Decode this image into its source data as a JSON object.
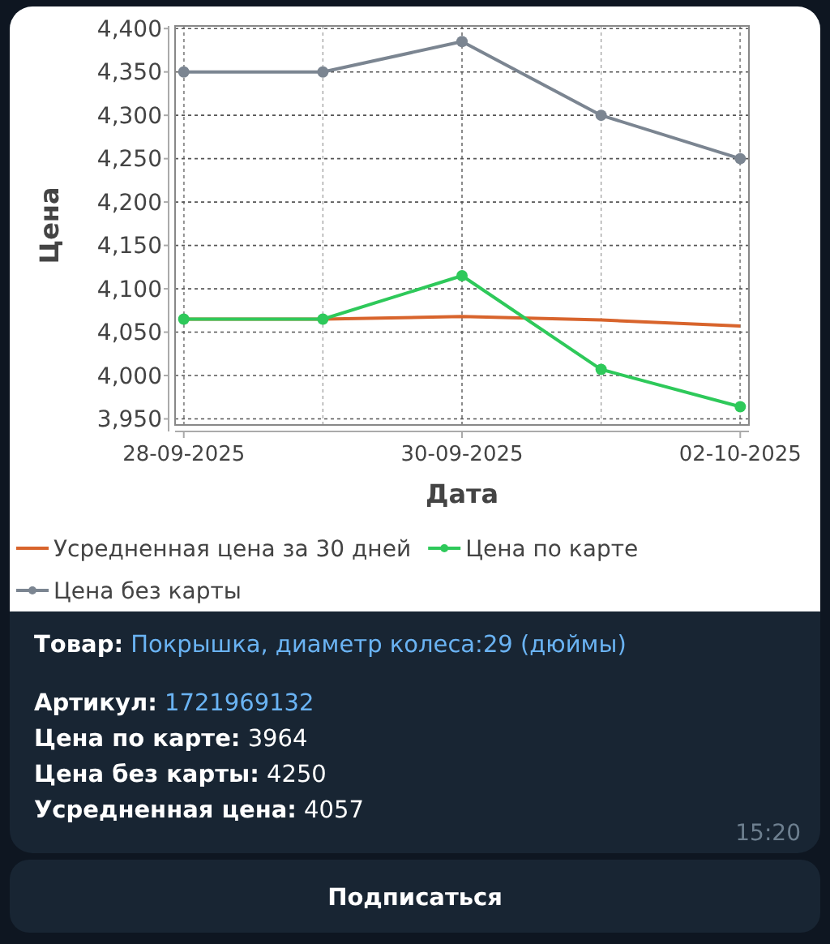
{
  "chart_data": {
    "type": "line",
    "xlabel": "Дата",
    "ylabel": "Цена",
    "x": [
      "2025-09-28",
      "2025-09-29",
      "2025-09-30",
      "2025-10-01",
      "2025-10-02"
    ],
    "series": [
      {
        "name": "Усредненная цена за 30 дней",
        "color": "#d8642c",
        "marker": "none",
        "values": [
          4065,
          4065,
          4068,
          4064,
          4057
        ]
      },
      {
        "name": "Цена по карте",
        "color": "#2ec95a",
        "values": [
          4065,
          4065,
          4115,
          4007,
          3964
        ]
      },
      {
        "name": "Цена без карты",
        "color": "#7b8591",
        "values": [
          4350,
          4350,
          4385,
          4300,
          4250
        ]
      }
    ],
    "xlim": [
      "2025-09-27T22:30",
      "2025-10-02T01:30"
    ],
    "xticks": [
      {
        "value": "2025-09-28",
        "label": "28-09-2025"
      },
      {
        "value": "2025-09-30",
        "label": "30-09-2025"
      },
      {
        "value": "2025-10-02",
        "label": "02-10-2025"
      }
    ],
    "ylim": [
      3943,
      4403
    ],
    "yticks": [
      {
        "value": 3950,
        "label": "3,950"
      },
      {
        "value": 4000,
        "label": "4,000"
      },
      {
        "value": 4050,
        "label": "4,050"
      },
      {
        "value": 4100,
        "label": "4,100"
      },
      {
        "value": 4150,
        "label": "4,150"
      },
      {
        "value": 4200,
        "label": "4,200"
      },
      {
        "value": 4250,
        "label": "4,250"
      },
      {
        "value": 4300,
        "label": "4,300"
      },
      {
        "value": 4350,
        "label": "4,350"
      },
      {
        "value": 4400,
        "label": "4,400"
      }
    ],
    "grid": true,
    "legend": "bottom",
    "marker": "circle",
    "line_style": "solid",
    "annotations": [
      "Товар: Покрышка, диаметр колеса:29 (дюймы)",
      "Артикул: 1721969132",
      "Цена по карте: 3964",
      "Цена без карты: 4250",
      "Усредненная цена: 4057",
      "15:20",
      "Подписаться"
    ]
  }
}
